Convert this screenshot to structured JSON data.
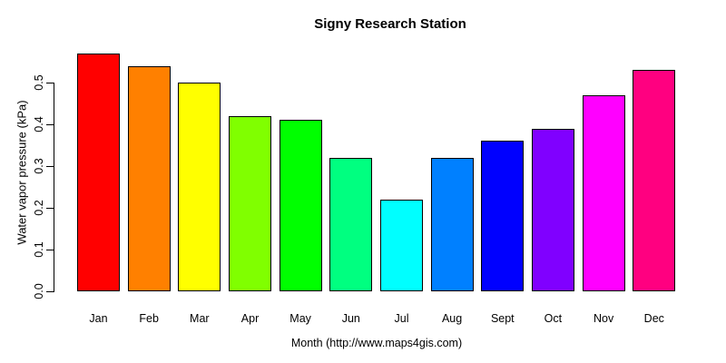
{
  "chart_data": {
    "type": "bar",
    "title": "Signy Research Station",
    "xlabel": "Month (http://www.maps4gis.com)",
    "ylabel": "Water vapor pressure (kPa)",
    "categories": [
      "Jan",
      "Feb",
      "Mar",
      "Apr",
      "May",
      "Jun",
      "Jul",
      "Aug",
      "Sept",
      "Oct",
      "Nov",
      "Dec"
    ],
    "values": [
      0.57,
      0.54,
      0.5,
      0.42,
      0.41,
      0.32,
      0.22,
      0.32,
      0.36,
      0.39,
      0.47,
      0.53
    ],
    "bar_colors": [
      "#FF0000",
      "#FF8000",
      "#FFFF00",
      "#80FF00",
      "#00FF00",
      "#00FF80",
      "#00FFFF",
      "#0080FF",
      "#0000FF",
      "#8000FF",
      "#FF00FF",
      "#FF0080"
    ],
    "bar_border_color": "#000000",
    "axis_color": "#000000",
    "background_color": "#FFFFFF",
    "yticks": [
      0.0,
      0.1,
      0.2,
      0.3,
      0.4,
      0.5
    ],
    "ytick_labels": [
      "0.0",
      "0.1",
      "0.2",
      "0.3",
      "0.4",
      "0.5"
    ],
    "ylim": [
      0.0,
      0.575
    ],
    "grid": false,
    "legend_position": "none"
  }
}
